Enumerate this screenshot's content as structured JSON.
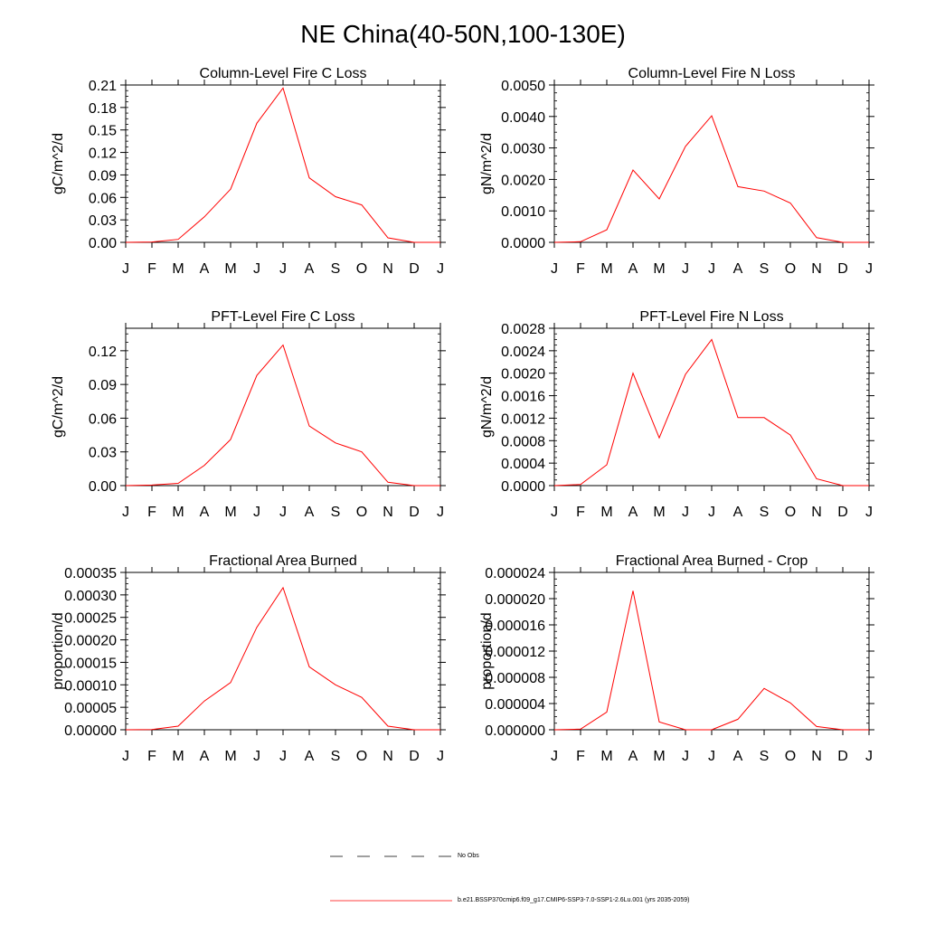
{
  "page_title": "NE China(40-50N,100-130E)",
  "colors": {
    "series": "#ff0000",
    "axis": "#000000"
  },
  "legend": [
    {
      "label": "No Obs",
      "style": "dashed",
      "color": "#000000"
    },
    {
      "label": "b.e21.BSSP370cmip6.f09_g17.CMIP6-SSP3-7.0-SSP1-2.6Lu.001 (yrs 2035-2059)",
      "style": "solid",
      "color": "#ff0000"
    }
  ],
  "chart_data": [
    {
      "type": "line",
      "title": "Column-Level Fire C Loss",
      "ylabel": "gC/m^2/d",
      "x": [
        "J",
        "F",
        "M",
        "A",
        "M",
        "J",
        "J",
        "A",
        "S",
        "O",
        "N",
        "D",
        "J"
      ],
      "ylim": [
        0,
        0.21
      ],
      "yticks": [
        "0.00",
        "0.03",
        "0.06",
        "0.09",
        "0.12",
        "0.15",
        "0.18",
        "0.21"
      ],
      "values": [
        0.0,
        0.0005,
        0.004,
        0.034,
        0.071,
        0.159,
        0.206,
        0.086,
        0.061,
        0.05,
        0.006,
        0.0,
        0.0
      ]
    },
    {
      "type": "line",
      "title": "Column-Level Fire N Loss",
      "ylabel": "gN/m^2/d",
      "x": [
        "J",
        "F",
        "M",
        "A",
        "M",
        "J",
        "J",
        "A",
        "S",
        "O",
        "N",
        "D",
        "J"
      ],
      "ylim": [
        0,
        0.005
      ],
      "yticks": [
        "0.0000",
        "0.0010",
        "0.0020",
        "0.0030",
        "0.0040",
        "0.0050"
      ],
      "values": [
        0.0,
        2e-05,
        0.0004,
        0.0023,
        0.00138,
        0.00305,
        0.00402,
        0.00177,
        0.00163,
        0.00125,
        0.00015,
        0.0,
        0.0
      ]
    },
    {
      "type": "line",
      "title": "PFT-Level Fire C Loss",
      "ylabel": "gC/m^2/d",
      "x": [
        "J",
        "F",
        "M",
        "A",
        "M",
        "J",
        "J",
        "A",
        "S",
        "O",
        "N",
        "D",
        "J"
      ],
      "ylim": [
        0,
        0.14
      ],
      "yticks": [
        "0.00",
        "0.03",
        "0.06",
        "0.09",
        "0.12"
      ],
      "ytick_values": [
        0,
        0.03,
        0.06,
        0.09,
        0.12
      ],
      "values": [
        0.0,
        0.0005,
        0.002,
        0.018,
        0.041,
        0.098,
        0.125,
        0.053,
        0.038,
        0.03,
        0.003,
        0.0,
        0.0
      ]
    },
    {
      "type": "line",
      "title": "PFT-Level Fire N Loss",
      "ylabel": "gN/m^2/d",
      "x": [
        "J",
        "F",
        "M",
        "A",
        "M",
        "J",
        "J",
        "A",
        "S",
        "O",
        "N",
        "D",
        "J"
      ],
      "ylim": [
        0,
        0.0028
      ],
      "yticks": [
        "0.0000",
        "0.0004",
        "0.0008",
        "0.0012",
        "0.0016",
        "0.0020",
        "0.0024",
        "0.0028"
      ],
      "values": [
        0.0,
        2e-05,
        0.00037,
        0.002,
        0.00085,
        0.00198,
        0.0026,
        0.00121,
        0.00121,
        0.0009,
        0.00012,
        0.0,
        0.0
      ]
    },
    {
      "type": "line",
      "title": "Fractional Area Burned",
      "ylabel": "proportion/d",
      "x": [
        "J",
        "F",
        "M",
        "A",
        "M",
        "J",
        "J",
        "A",
        "S",
        "O",
        "N",
        "D",
        "J"
      ],
      "ylim": [
        0,
        0.00035
      ],
      "yticks": [
        "0.00000",
        "0.00005",
        "0.00010",
        "0.00015",
        "0.00020",
        "0.00025",
        "0.00030",
        "0.00035"
      ],
      "values": [
        0.0,
        5e-07,
        8e-06,
        6.4e-05,
        0.000105,
        0.000228,
        0.000316,
        0.00014,
        0.0001,
        7.2e-05,
        8e-06,
        0.0,
        0.0
      ]
    },
    {
      "type": "line",
      "title": "Fractional Area Burned - Crop",
      "ylabel": "proportion/d",
      "x": [
        "J",
        "F",
        "M",
        "A",
        "M",
        "J",
        "J",
        "A",
        "S",
        "O",
        "N",
        "D",
        "J"
      ],
      "ylim": [
        0,
        2.4e-05
      ],
      "yticks": [
        "0.000000",
        "0.000004",
        "0.000008",
        "0.000012",
        "0.000016",
        "0.000020",
        "0.000024"
      ],
      "values": [
        0.0,
        1e-07,
        2.7e-06,
        2.12e-05,
        1.2e-06,
        0.0,
        0.0,
        1.6e-06,
        6.3e-06,
        4.1e-06,
        5e-07,
        0.0,
        0.0
      ]
    }
  ]
}
